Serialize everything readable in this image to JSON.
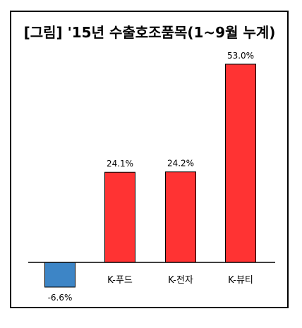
{
  "chart_data": {
    "type": "bar",
    "title": "[그림] '15년 수출호조품목(1~9월 누계)",
    "categories": [
      "",
      "K-푸드",
      "K-전자",
      "K-뷰티"
    ],
    "values": [
      -6.6,
      24.1,
      24.2,
      53.0
    ],
    "data_labels": [
      "-6.6%",
      "24.1%",
      "24.2%",
      "53.0%"
    ],
    "bar_colors": [
      "#3d85c6",
      "#ff3333",
      "#ff3333",
      "#ff3333"
    ],
    "xlabel": "",
    "ylabel": "",
    "grid": false,
    "legend": "none",
    "ylim": [
      -6.6,
      53.0
    ]
  },
  "colors": {
    "border": "#000000",
    "axis": "#000000",
    "negative_bar": "#3d85c6",
    "positive_bar": "#ff3333",
    "bar_outline": "#000000",
    "text": "#000000"
  }
}
